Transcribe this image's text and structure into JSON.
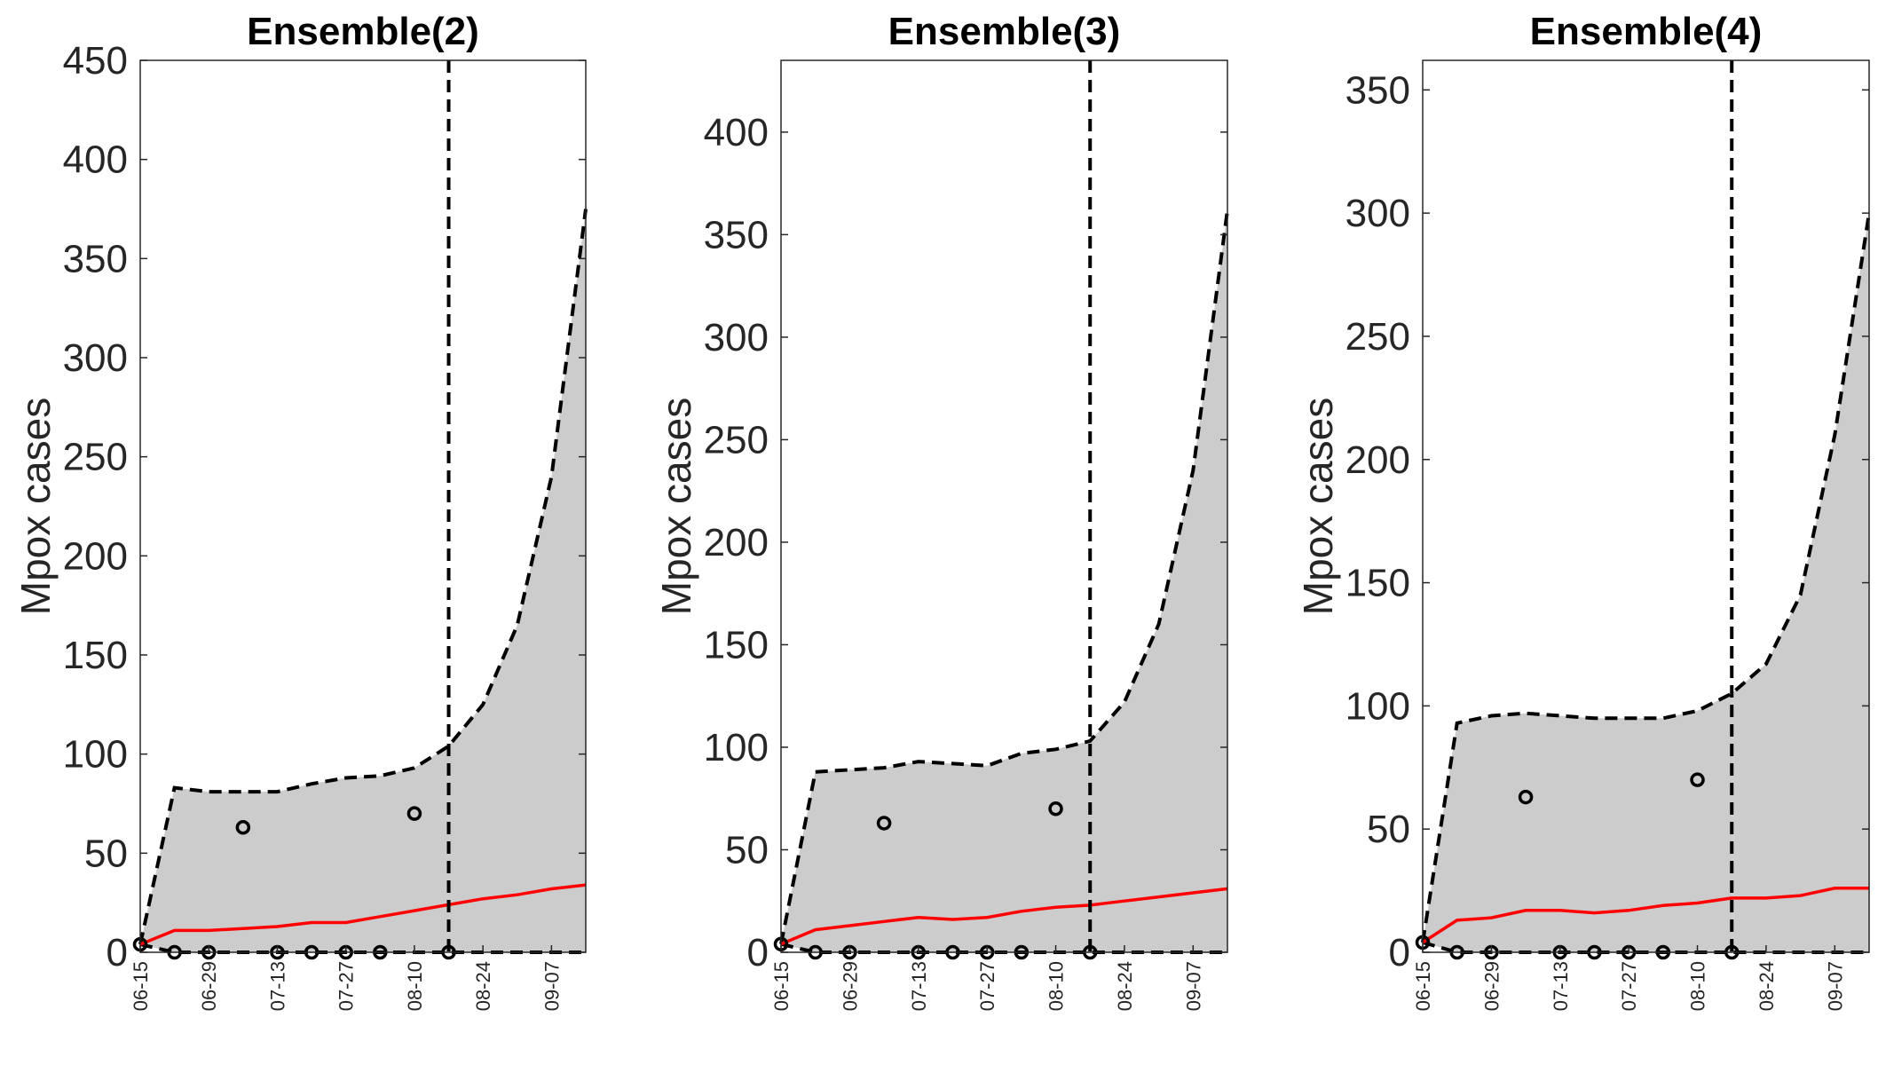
{
  "chart_data": [
    {
      "type": "line",
      "title": "Ensemble(2)",
      "ylabel": "Mpox cases",
      "xlabel": "",
      "x": [
        "06-15",
        "06-22",
        "06-29",
        "07-06",
        "07-13",
        "07-20",
        "07-27",
        "08-03",
        "08-10",
        "08-17",
        "08-24",
        "08-31",
        "09-07",
        "09-14"
      ],
      "xticks": [
        "06-15",
        "06-29",
        "07-13",
        "07-27",
        "08-10",
        "08-24",
        "09-07"
      ],
      "ylim": [
        0,
        450
      ],
      "yticks": [
        0,
        50,
        100,
        150,
        200,
        250,
        300,
        350,
        400,
        450
      ],
      "forecast_start": "08-17",
      "series": [
        {
          "role": "upper_bound",
          "color": "#000000",
          "style": "dashed",
          "values": [
            4,
            83,
            81,
            81,
            81,
            85,
            88,
            89,
            93,
            104,
            125,
            165,
            240,
            375
          ]
        },
        {
          "role": "lower_bound",
          "color": "#000000",
          "style": "dashed",
          "values": [
            4,
            0,
            0,
            0,
            0,
            0,
            0,
            0,
            0,
            0,
            0,
            0,
            0,
            0
          ]
        },
        {
          "role": "mean",
          "color": "#ff0000",
          "style": "solid",
          "values": [
            4,
            11,
            11,
            12,
            13,
            15,
            15,
            18,
            21,
            24,
            27,
            29,
            32,
            34
          ]
        },
        {
          "role": "observed",
          "color": "#000000",
          "style": "circles",
          "values": [
            4,
            0,
            0,
            63,
            0,
            0,
            0,
            0,
            70,
            0,
            null,
            null,
            null,
            null
          ]
        }
      ]
    },
    {
      "type": "line",
      "title": "Ensemble(3)",
      "ylabel": "Mpox cases",
      "xlabel": "",
      "x": [
        "06-15",
        "06-22",
        "06-29",
        "07-06",
        "07-13",
        "07-20",
        "07-27",
        "08-03",
        "08-10",
        "08-17",
        "08-24",
        "08-31",
        "09-07",
        "09-14"
      ],
      "xticks": [
        "06-15",
        "06-29",
        "07-13",
        "07-27",
        "08-10",
        "08-24",
        "09-07"
      ],
      "ylim": [
        0,
        435
      ],
      "yticks": [
        0,
        50,
        100,
        150,
        200,
        250,
        300,
        350,
        400
      ],
      "forecast_start": "08-17",
      "series": [
        {
          "role": "upper_bound",
          "color": "#000000",
          "style": "dashed",
          "values": [
            4,
            88,
            89,
            90,
            93,
            92,
            91,
            97,
            99,
            103,
            122,
            160,
            235,
            362
          ]
        },
        {
          "role": "lower_bound",
          "color": "#000000",
          "style": "dashed",
          "values": [
            4,
            0,
            0,
            0,
            0,
            0,
            0,
            0,
            0,
            0,
            0,
            0,
            0,
            0
          ]
        },
        {
          "role": "mean",
          "color": "#ff0000",
          "style": "solid",
          "values": [
            4,
            11,
            13,
            15,
            17,
            16,
            17,
            20,
            22,
            23,
            25,
            27,
            29,
            31
          ]
        },
        {
          "role": "observed",
          "color": "#000000",
          "style": "circles",
          "values": [
            4,
            0,
            0,
            63,
            0,
            0,
            0,
            0,
            70,
            0,
            null,
            null,
            null,
            null
          ]
        }
      ]
    },
    {
      "type": "line",
      "title": "Ensemble(4)",
      "ylabel": "Mpox cases",
      "xlabel": "",
      "x": [
        "06-15",
        "06-22",
        "06-29",
        "07-06",
        "07-13",
        "07-20",
        "07-27",
        "08-03",
        "08-10",
        "08-17",
        "08-24",
        "08-31",
        "09-07",
        "09-14"
      ],
      "xticks": [
        "06-15",
        "06-29",
        "07-13",
        "07-27",
        "08-10",
        "08-24",
        "09-07"
      ],
      "ylim": [
        0,
        362
      ],
      "yticks": [
        0,
        50,
        100,
        150,
        200,
        250,
        300,
        350
      ],
      "forecast_start": "08-17",
      "series": [
        {
          "role": "upper_bound",
          "color": "#000000",
          "style": "dashed",
          "values": [
            4,
            93,
            96,
            97,
            96,
            95,
            95,
            95,
            98,
            105,
            117,
            145,
            210,
            300
          ]
        },
        {
          "role": "lower_bound",
          "color": "#000000",
          "style": "dashed",
          "values": [
            4,
            0,
            0,
            0,
            0,
            0,
            0,
            0,
            0,
            0,
            0,
            0,
            0,
            0
          ]
        },
        {
          "role": "mean",
          "color": "#ff0000",
          "style": "solid",
          "values": [
            4,
            13,
            14,
            17,
            17,
            16,
            17,
            19,
            20,
            22,
            22,
            23,
            26,
            26
          ]
        },
        {
          "role": "observed",
          "color": "#000000",
          "style": "circles",
          "values": [
            4,
            0,
            0,
            63,
            0,
            0,
            0,
            0,
            70,
            0,
            null,
            null,
            null,
            null
          ]
        }
      ]
    }
  ]
}
